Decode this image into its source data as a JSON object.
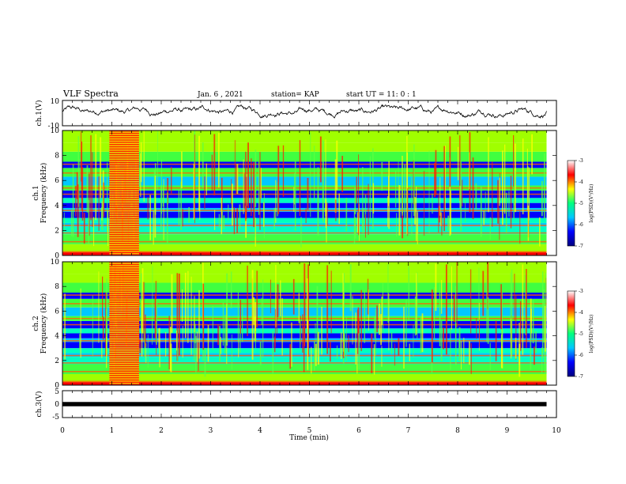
{
  "header": {
    "title": "VLF Spectra",
    "date": "Jan. 6 , 2021",
    "station": "station= KAP",
    "start": "start  UT =   11: 0  : 1"
  },
  "chart_data": [
    {
      "type": "line",
      "name": "ch1-waveform",
      "ylabel": "ch.1(V)",
      "ylim": [
        -10,
        10
      ],
      "yticks": [
        "10",
        "-10"
      ],
      "xlim": [
        0,
        10
      ],
      "x_end": 9.8,
      "series_mean": 1.5,
      "series_amplitude": 3.5
    },
    {
      "type": "heatmap",
      "name": "ch1-spectrogram",
      "ylabel": "ch.1\nFrequency  (kHz)",
      "ylim": [
        0,
        10
      ],
      "yticks": [
        "0",
        "2",
        "4",
        "6",
        "8",
        "10"
      ],
      "xlim": [
        0,
        10
      ],
      "x_end": 9.8,
      "burst_x": [
        0.95,
        1.55
      ],
      "colorbar": {
        "label": "log(PSD)(V²/Hz)",
        "range": [
          -7,
          -3
        ],
        "ticks": [
          "-3",
          "-4",
          "-5",
          "-6",
          "-7"
        ],
        "colors": [
          "#000080",
          "#0000ff",
          "#00c8ff",
          "#00ff80",
          "#ffff00",
          "#ff0000",
          "#ffffff"
        ]
      }
    },
    {
      "type": "heatmap",
      "name": "ch2-spectrogram",
      "ylabel": "ch.2\nFrequency  (kHz)",
      "ylim": [
        0,
        10
      ],
      "yticks": [
        "0",
        "2",
        "4",
        "6",
        "8",
        "10"
      ],
      "xlim": [
        0,
        10
      ],
      "x_end": 9.8,
      "burst_x": [
        0.95,
        1.55
      ],
      "colorbar": {
        "label": "log(PSD)(V²/Hz)",
        "range": [
          -7,
          -3
        ],
        "ticks": [
          "-3",
          "-4",
          "-5",
          "-6",
          "-7"
        ],
        "colors": [
          "#000080",
          "#0000ff",
          "#00c8ff",
          "#00ff80",
          "#ffff00",
          "#ff0000",
          "#ffffff"
        ]
      }
    },
    {
      "type": "line",
      "name": "ch3-waveform",
      "ylabel": "ch.3(V)",
      "ylim": [
        -5,
        5
      ],
      "yticks": [
        "5",
        "0",
        "-5"
      ],
      "xlim": [
        0,
        10
      ],
      "x_end": 9.8,
      "series_mean": 0
    }
  ],
  "xaxis": {
    "label": "Time  (min)",
    "ticks": [
      "0",
      "1",
      "2",
      "3",
      "4",
      "5",
      "6",
      "7",
      "8",
      "9",
      "10"
    ]
  }
}
